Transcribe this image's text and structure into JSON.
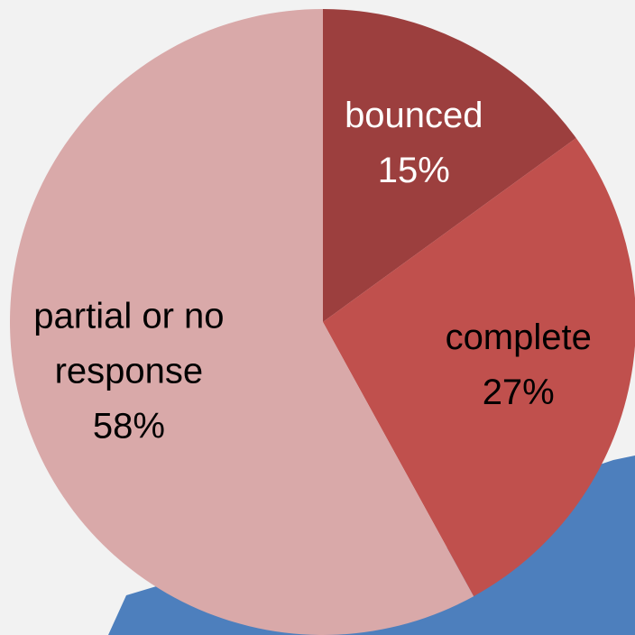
{
  "chart_data": {
    "type": "pie",
    "categories": [
      "bounced",
      "complete",
      "partial or no response"
    ],
    "values": [
      15,
      27,
      58
    ],
    "value_labels": [
      "15%",
      "27%",
      "58%"
    ],
    "colors": [
      "#9c3f3e",
      "#c0504d",
      "#d9a9a9"
    ],
    "label_colors": [
      "#ffffff",
      "#000000",
      "#000000"
    ]
  }
}
